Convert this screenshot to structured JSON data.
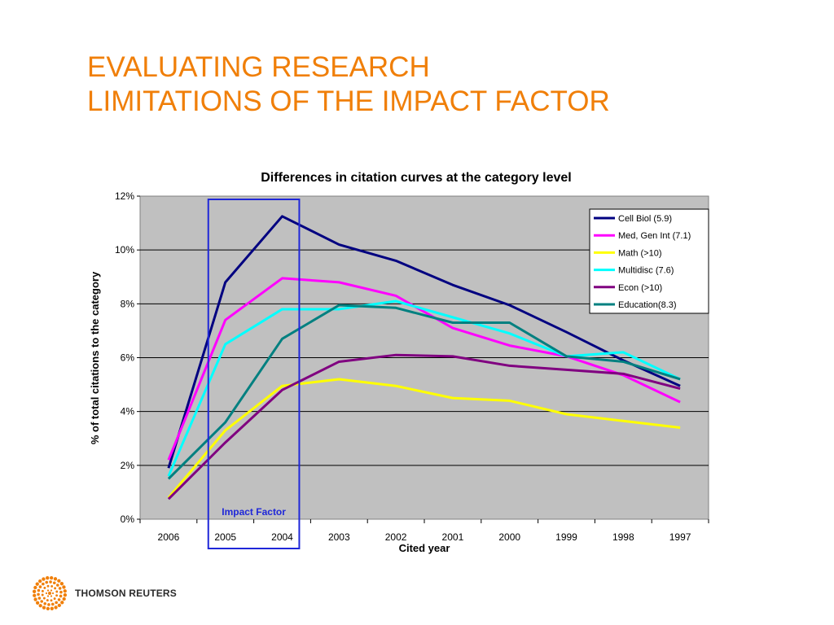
{
  "slide": {
    "title_line1": "EVALUATING RESEARCH",
    "title_line2": "LIMITATIONS OF THE IMPACT FACTOR"
  },
  "footer": {
    "brand": "THOMSON REUTERS"
  },
  "colors": {
    "title": "#f07f09",
    "plot_background": "#c0c0c0",
    "highlight_box": "#1f27d8"
  },
  "chart_data": {
    "type": "line",
    "title": "Differences in citation curves at the category level",
    "xlabel": "Cited year",
    "ylabel": "% of total citations to the category",
    "categories": [
      "2006",
      "2005",
      "2004",
      "2003",
      "2002",
      "2001",
      "2000",
      "1999",
      "1998",
      "1997"
    ],
    "ylim": [
      0,
      12
    ],
    "yticks": [
      0,
      2,
      4,
      6,
      8,
      10,
      12
    ],
    "ytick_labels": [
      "0%",
      "2%",
      "4%",
      "6%",
      "8%",
      "10%",
      "12%"
    ],
    "grid": true,
    "legend_position": "top-right",
    "series": [
      {
        "name": "Cell Biol (5.9)",
        "color": "#000080",
        "values": [
          1.9,
          8.8,
          11.25,
          10.2,
          9.6,
          8.7,
          7.95,
          6.95,
          5.9,
          4.95
        ]
      },
      {
        "name": "Med, Gen Int (7.1)",
        "color": "#ff00ff",
        "values": [
          2.2,
          7.4,
          8.95,
          8.8,
          8.3,
          7.1,
          6.45,
          6.05,
          5.35,
          4.35
        ]
      },
      {
        "name": "Math (>10)",
        "color": "#ffff00",
        "values": [
          0.8,
          3.3,
          4.95,
          5.2,
          4.95,
          4.5,
          4.4,
          3.9,
          3.65,
          3.4
        ]
      },
      {
        "name": "Multidisc (7.6)",
        "color": "#00ffff",
        "values": [
          1.6,
          6.5,
          7.8,
          7.8,
          8.1,
          7.5,
          6.9,
          6.05,
          6.2,
          5.2
        ]
      },
      {
        "name": "Econ (>10)",
        "color": "#800080",
        "values": [
          0.75,
          2.85,
          4.8,
          5.85,
          6.1,
          6.05,
          5.7,
          5.55,
          5.4,
          4.85
        ]
      },
      {
        "name": "Education(8.3)",
        "color": "#008080",
        "values": [
          1.5,
          3.6,
          6.7,
          7.95,
          7.85,
          7.3,
          7.3,
          6.05,
          5.85,
          5.2
        ]
      }
    ],
    "annotations": [
      {
        "text": "Impact Factor",
        "categories": [
          "2005",
          "2004"
        ]
      }
    ]
  }
}
